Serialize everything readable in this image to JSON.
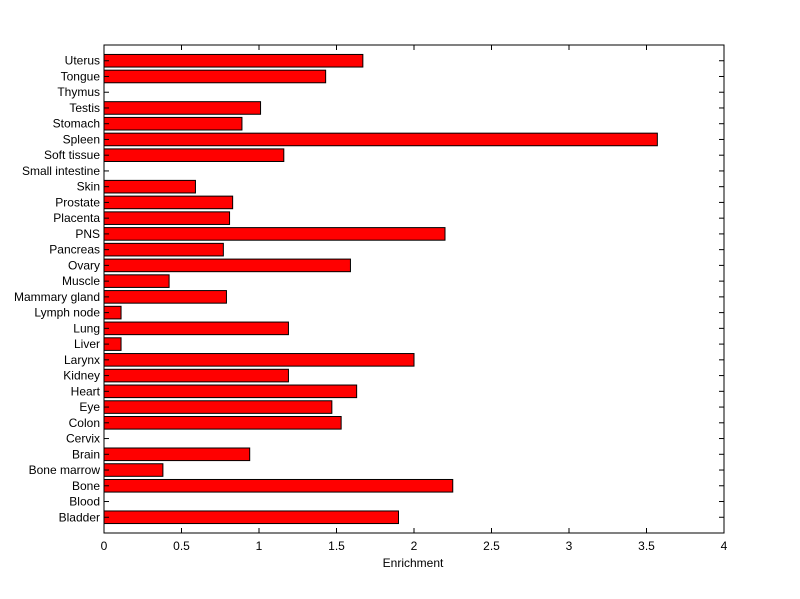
{
  "chart_data": {
    "type": "bar",
    "orientation": "horizontal",
    "title": "",
    "xlabel": "Enrichment",
    "ylabel": "",
    "xlim": [
      0,
      4
    ],
    "xticks": [
      0,
      0.5,
      1,
      1.5,
      2,
      2.5,
      3,
      3.5,
      4
    ],
    "xtick_labels": [
      "0",
      "0.5",
      "1",
      "1.5",
      "2",
      "2.5",
      "3",
      "3.5",
      "4"
    ],
    "grid": false,
    "bar_color": "#ff0000",
    "categories": [
      "Bladder",
      "Blood",
      "Bone",
      "Bone marrow",
      "Brain",
      "Cervix",
      "Colon",
      "Eye",
      "Heart",
      "Kidney",
      "Larynx",
      "Liver",
      "Lung",
      "Lymph node",
      "Mammary gland",
      "Muscle",
      "Ovary",
      "Pancreas",
      "PNS",
      "Placenta",
      "Prostate",
      "Skin",
      "Small intestine",
      "Soft tissue",
      "Spleen",
      "Stomach",
      "Testis",
      "Thymus",
      "Tongue",
      "Uterus"
    ],
    "values": [
      1.9,
      0,
      2.25,
      0.38,
      0.94,
      0,
      1.53,
      1.47,
      1.63,
      1.19,
      2.0,
      0.11,
      1.19,
      0.11,
      0.79,
      0.42,
      1.59,
      0.77,
      2.2,
      0.81,
      0.83,
      0.59,
      0,
      1.16,
      3.57,
      0.89,
      1.01,
      0,
      1.43,
      1.67
    ]
  }
}
